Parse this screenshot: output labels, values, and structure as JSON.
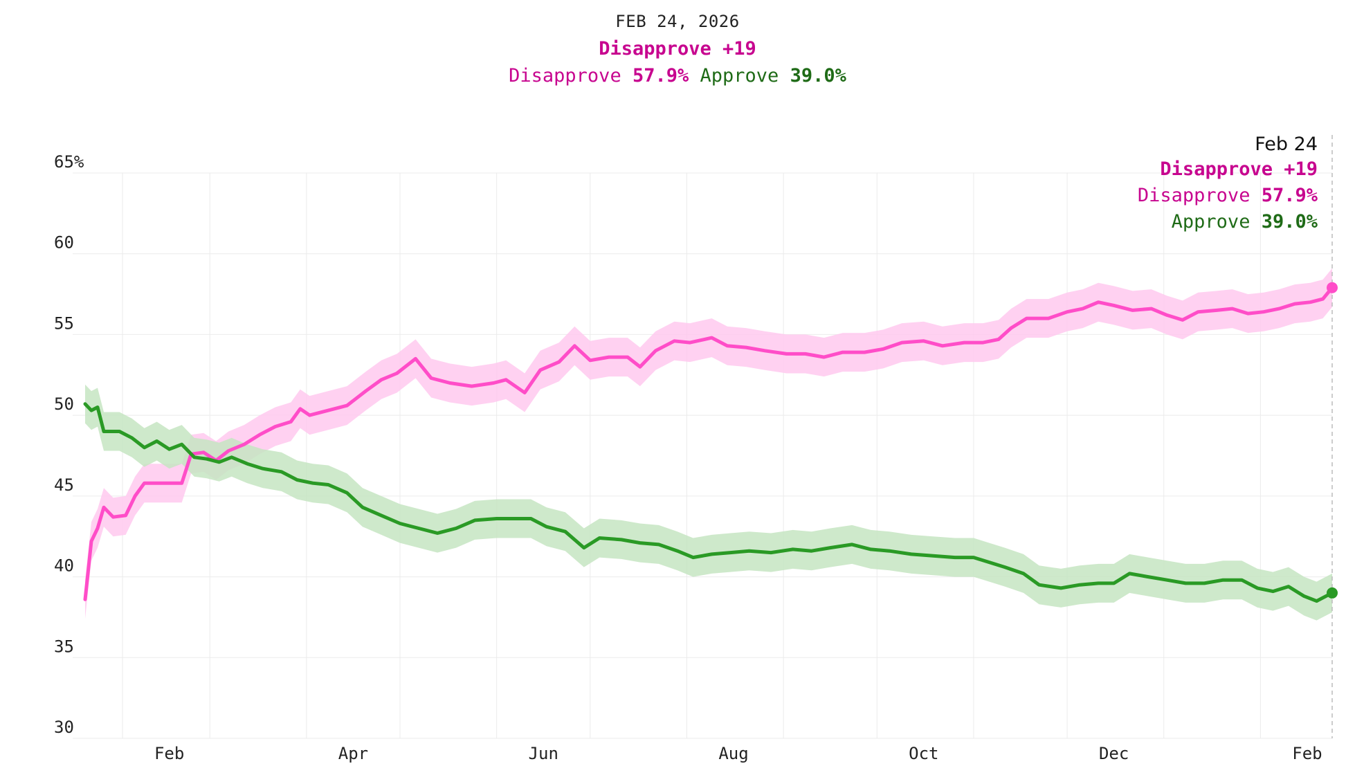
{
  "header": {
    "date": "FEB 24, 2026",
    "net_label": "Disapprove +19",
    "disapprove_label": "Disapprove",
    "disapprove_value": "57.9%",
    "approve_label": "Approve",
    "approve_value": "39.0%"
  },
  "tooltip": {
    "date": "Feb 24",
    "net_label": "Disapprove +19",
    "disapprove_label": "Disapprove",
    "disapprove_value": "57.9%",
    "approve_label": "Approve",
    "approve_value": "39.0%"
  },
  "colors": {
    "disapprove_line": "#ff4dc8",
    "disapprove_band": "#ffc9ef",
    "disapprove_text": "#c7058f",
    "approve_line": "#2a9a25",
    "approve_band": "#c6e5c2",
    "approve_text": "#1f6b17",
    "grid": "#ebebeb"
  },
  "chart_data": {
    "type": "line",
    "x_start": "2025-01-20",
    "x_end": "2026-02-24",
    "ylim": [
      30,
      65
    ],
    "yticks": [
      "65%",
      "60",
      "55",
      "50",
      "45",
      "40",
      "35",
      "30"
    ],
    "ytick_values": [
      65,
      60,
      55,
      50,
      45,
      40,
      35,
      30
    ],
    "xticks": [
      {
        "label": "Feb",
        "date": "2025-02-01"
      },
      {
        "label": "Apr",
        "date": "2025-04-01"
      },
      {
        "label": "Jun",
        "date": "2025-06-01"
      },
      {
        "label": "Aug",
        "date": "2025-08-01"
      },
      {
        "label": "Oct",
        "date": "2025-10-01"
      },
      {
        "label": "Dec",
        "date": "2025-12-01"
      },
      {
        "label": "Feb",
        "date": "2026-02-01"
      }
    ],
    "grid": true,
    "series": [
      {
        "name": "Disapprove",
        "band": 1.2,
        "points": [
          [
            "2025-01-20",
            38.6
          ],
          [
            "2025-01-22",
            42.2
          ],
          [
            "2025-01-24",
            43.0
          ],
          [
            "2025-01-26",
            44.3
          ],
          [
            "2025-01-29",
            43.7
          ],
          [
            "2025-02-02",
            43.8
          ],
          [
            "2025-02-05",
            45.0
          ],
          [
            "2025-02-08",
            45.8
          ],
          [
            "2025-02-14",
            45.8
          ],
          [
            "2025-02-20",
            45.8
          ],
          [
            "2025-02-23",
            47.6
          ],
          [
            "2025-02-27",
            47.7
          ],
          [
            "2025-03-03",
            47.2
          ],
          [
            "2025-03-07",
            47.8
          ],
          [
            "2025-03-12",
            48.2
          ],
          [
            "2025-03-17",
            48.8
          ],
          [
            "2025-03-22",
            49.3
          ],
          [
            "2025-03-27",
            49.6
          ],
          [
            "2025-03-30",
            50.4
          ],
          [
            "2025-04-02",
            50.0
          ],
          [
            "2025-04-08",
            50.3
          ],
          [
            "2025-04-14",
            50.6
          ],
          [
            "2025-04-20",
            51.5
          ],
          [
            "2025-04-25",
            52.2
          ],
          [
            "2025-04-30",
            52.6
          ],
          [
            "2025-05-06",
            53.5
          ],
          [
            "2025-05-11",
            52.3
          ],
          [
            "2025-05-17",
            52.0
          ],
          [
            "2025-05-24",
            51.8
          ],
          [
            "2025-05-31",
            52.0
          ],
          [
            "2025-06-04",
            52.2
          ],
          [
            "2025-06-10",
            51.4
          ],
          [
            "2025-06-15",
            52.8
          ],
          [
            "2025-06-21",
            53.3
          ],
          [
            "2025-06-26",
            54.3
          ],
          [
            "2025-07-01",
            53.4
          ],
          [
            "2025-07-07",
            53.6
          ],
          [
            "2025-07-13",
            53.6
          ],
          [
            "2025-07-17",
            53.0
          ],
          [
            "2025-07-22",
            54.0
          ],
          [
            "2025-07-28",
            54.6
          ],
          [
            "2025-08-02",
            54.5
          ],
          [
            "2025-08-09",
            54.8
          ],
          [
            "2025-08-14",
            54.3
          ],
          [
            "2025-08-20",
            54.2
          ],
          [
            "2025-08-26",
            54.0
          ],
          [
            "2025-09-02",
            53.8
          ],
          [
            "2025-09-08",
            53.8
          ],
          [
            "2025-09-14",
            53.6
          ],
          [
            "2025-09-20",
            53.9
          ],
          [
            "2025-09-27",
            53.9
          ],
          [
            "2025-10-03",
            54.1
          ],
          [
            "2025-10-09",
            54.5
          ],
          [
            "2025-10-16",
            54.6
          ],
          [
            "2025-10-22",
            54.3
          ],
          [
            "2025-10-29",
            54.5
          ],
          [
            "2025-11-04",
            54.5
          ],
          [
            "2025-11-09",
            54.7
          ],
          [
            "2025-11-13",
            55.4
          ],
          [
            "2025-11-18",
            56.0
          ],
          [
            "2025-11-25",
            56.0
          ],
          [
            "2025-12-01",
            56.4
          ],
          [
            "2025-12-06",
            56.6
          ],
          [
            "2025-12-11",
            57.0
          ],
          [
            "2025-12-16",
            56.8
          ],
          [
            "2025-12-22",
            56.5
          ],
          [
            "2025-12-28",
            56.6
          ],
          [
            "2026-01-02",
            56.2
          ],
          [
            "2026-01-07",
            55.9
          ],
          [
            "2026-01-12",
            56.4
          ],
          [
            "2026-01-18",
            56.5
          ],
          [
            "2026-01-23",
            56.6
          ],
          [
            "2026-01-28",
            56.3
          ],
          [
            "2026-02-02",
            56.4
          ],
          [
            "2026-02-07",
            56.6
          ],
          [
            "2026-02-12",
            56.9
          ],
          [
            "2026-02-17",
            57.0
          ],
          [
            "2026-02-21",
            57.2
          ],
          [
            "2026-02-24",
            57.9
          ]
        ]
      },
      {
        "name": "Approve",
        "band": 1.2,
        "points": [
          [
            "2025-01-20",
            50.7
          ],
          [
            "2025-01-22",
            50.3
          ],
          [
            "2025-01-24",
            50.5
          ],
          [
            "2025-01-26",
            49.0
          ],
          [
            "2025-01-31",
            49.0
          ],
          [
            "2025-02-04",
            48.6
          ],
          [
            "2025-02-08",
            48.0
          ],
          [
            "2025-02-12",
            48.4
          ],
          [
            "2025-02-16",
            47.9
          ],
          [
            "2025-02-20",
            48.2
          ],
          [
            "2025-02-24",
            47.4
          ],
          [
            "2025-02-28",
            47.3
          ],
          [
            "2025-03-04",
            47.1
          ],
          [
            "2025-03-08",
            47.4
          ],
          [
            "2025-03-13",
            47.0
          ],
          [
            "2025-03-18",
            46.7
          ],
          [
            "2025-03-24",
            46.5
          ],
          [
            "2025-03-29",
            46.0
          ],
          [
            "2025-04-03",
            45.8
          ],
          [
            "2025-04-08",
            45.7
          ],
          [
            "2025-04-14",
            45.2
          ],
          [
            "2025-04-19",
            44.3
          ],
          [
            "2025-04-25",
            43.8
          ],
          [
            "2025-05-01",
            43.3
          ],
          [
            "2025-05-07",
            43.0
          ],
          [
            "2025-05-13",
            42.7
          ],
          [
            "2025-05-19",
            43.0
          ],
          [
            "2025-05-25",
            43.5
          ],
          [
            "2025-06-01",
            43.6
          ],
          [
            "2025-06-06",
            43.6
          ],
          [
            "2025-06-12",
            43.6
          ],
          [
            "2025-06-17",
            43.1
          ],
          [
            "2025-06-23",
            42.8
          ],
          [
            "2025-06-29",
            41.8
          ],
          [
            "2025-07-04",
            42.4
          ],
          [
            "2025-07-11",
            42.3
          ],
          [
            "2025-07-17",
            42.1
          ],
          [
            "2025-07-23",
            42.0
          ],
          [
            "2025-07-29",
            41.6
          ],
          [
            "2025-08-03",
            41.2
          ],
          [
            "2025-08-09",
            41.4
          ],
          [
            "2025-08-15",
            41.5
          ],
          [
            "2025-08-21",
            41.6
          ],
          [
            "2025-08-28",
            41.5
          ],
          [
            "2025-09-04",
            41.7
          ],
          [
            "2025-09-10",
            41.6
          ],
          [
            "2025-09-16",
            41.8
          ],
          [
            "2025-09-23",
            42.0
          ],
          [
            "2025-09-29",
            41.7
          ],
          [
            "2025-10-05",
            41.6
          ],
          [
            "2025-10-12",
            41.4
          ],
          [
            "2025-10-19",
            41.3
          ],
          [
            "2025-10-26",
            41.2
          ],
          [
            "2025-11-01",
            41.2
          ],
          [
            "2025-11-06",
            40.9
          ],
          [
            "2025-11-11",
            40.6
          ],
          [
            "2025-11-17",
            40.2
          ],
          [
            "2025-11-22",
            39.5
          ],
          [
            "2025-11-29",
            39.3
          ],
          [
            "2025-12-05",
            39.5
          ],
          [
            "2025-12-11",
            39.6
          ],
          [
            "2025-12-16",
            39.6
          ],
          [
            "2025-12-21",
            40.2
          ],
          [
            "2025-12-27",
            40.0
          ],
          [
            "2026-01-02",
            39.8
          ],
          [
            "2026-01-08",
            39.6
          ],
          [
            "2026-01-14",
            39.6
          ],
          [
            "2026-01-20",
            39.8
          ],
          [
            "2026-01-26",
            39.8
          ],
          [
            "2026-01-31",
            39.3
          ],
          [
            "2026-02-05",
            39.1
          ],
          [
            "2026-02-10",
            39.4
          ],
          [
            "2026-02-15",
            38.8
          ],
          [
            "2026-02-19",
            38.5
          ],
          [
            "2026-02-24",
            39.0
          ]
        ]
      }
    ]
  }
}
